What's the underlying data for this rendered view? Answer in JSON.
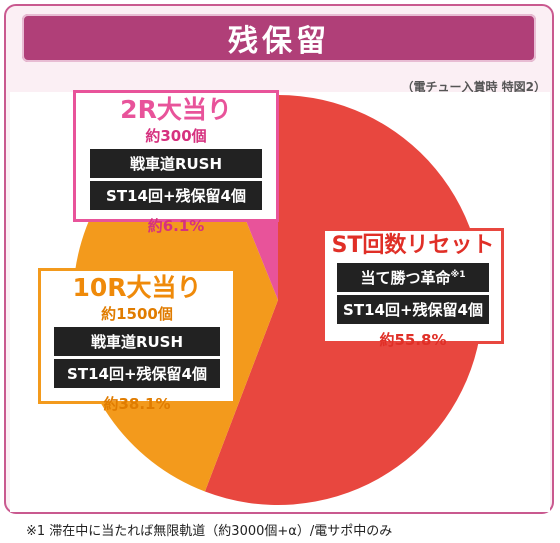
{
  "header": {
    "title": "残保留"
  },
  "note_top": "（電チュー入賞時 特図2）",
  "footnote": "※1 滞在中に当たれば無限軌道（約3000個+α）/電サポ中のみ",
  "colors": {
    "st_reset": "#e8473f",
    "r10": "#f39a1c",
    "r2": "#e8539a",
    "frame": "#b03f78"
  },
  "boxes": {
    "r2": {
      "title": "2R大当り",
      "sub": "約300個",
      "tag1": "戦車道RUSH",
      "tag2": "ST14回+残保留4個",
      "pct": "約6.1%"
    },
    "r10": {
      "title": "10R大当り",
      "sub": "約1500個",
      "tag1": "戦車道RUSH",
      "tag2": "ST14回+残保留4個",
      "pct": "約38.1%"
    },
    "st_reset": {
      "title": "ST回数リセット",
      "tag1": "当て勝つ革命",
      "tag1_note": "※1",
      "tag2": "ST14回+残保留4個",
      "pct": "約55.8%"
    }
  },
  "chart_data": {
    "type": "pie",
    "title": "残保留",
    "categories": [
      "ST回数リセット",
      "10R大当り",
      "2R大当り"
    ],
    "values": [
      55.8,
      38.1,
      6.1
    ],
    "colors": [
      "#e8473f",
      "#f39a1c",
      "#e8539a"
    ],
    "legend": "none"
  }
}
